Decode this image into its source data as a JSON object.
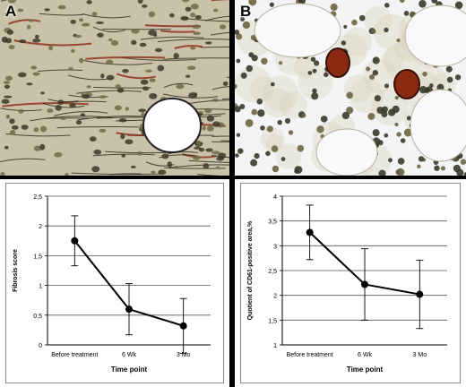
{
  "panels": [
    {
      "letter": "A"
    },
    {
      "letter": "B"
    }
  ],
  "colors": {
    "line": "#000000",
    "grid": "#555555",
    "tissue_a": "#c9c1a8",
    "tissue_b": "#eef1f3",
    "stain_red": "#8b2a12",
    "nuclei": "#3a3a2a"
  },
  "chart_data": [
    {
      "type": "line",
      "title": "",
      "xlabel": "Time point",
      "ylabel": "Fibrosis score",
      "categories": [
        "Before treatment",
        "6 Wk",
        "3 Mo"
      ],
      "series": [
        {
          "values": [
            1.75,
            0.6,
            0.32
          ],
          "error": [
            0.42,
            0.43,
            0.46
          ]
        }
      ],
      "ylim": [
        0,
        2.5
      ],
      "yticks": [
        "0",
        "0,5",
        "1",
        "1,5",
        "2",
        "2,5"
      ],
      "ytick_values": [
        0,
        0.5,
        1,
        1.5,
        2,
        2.5
      ],
      "grid": true,
      "legend": "none"
    },
    {
      "type": "line",
      "title": "",
      "xlabel": "Time point",
      "ylabel": "Quotient of CD61-positive area,%",
      "categories": [
        "Before treatment",
        "6 Wk",
        "3 Mo"
      ],
      "series": [
        {
          "values": [
            3.27,
            2.22,
            2.02
          ],
          "error": [
            0.55,
            0.72,
            0.69
          ]
        }
      ],
      "ylim": [
        1,
        4
      ],
      "yticks": [
        "1",
        "1,5",
        "2",
        "2,5",
        "3",
        "3,5",
        "4"
      ],
      "ytick_values": [
        1,
        1.5,
        2,
        2.5,
        3,
        3.5,
        4
      ],
      "grid": true,
      "legend": "none"
    }
  ]
}
